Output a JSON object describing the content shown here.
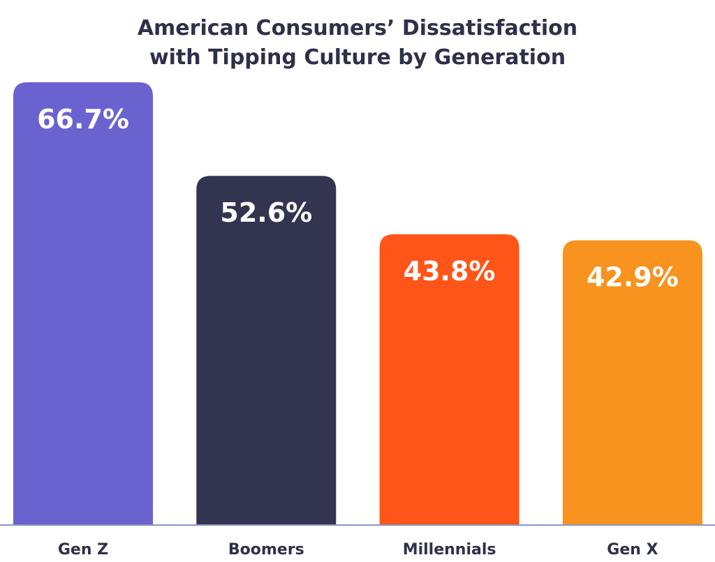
{
  "chart_data": {
    "type": "bar",
    "title_lines": [
      "American Consumers’ Dissatisfaction",
      "with Tipping Culture by Generation"
    ],
    "categories": [
      "Gen Z",
      "Boomers",
      "Millennials",
      "Gen X"
    ],
    "values": [
      66.7,
      52.6,
      43.8,
      42.9
    ],
    "value_labels": [
      "66.7%",
      "52.6%",
      "43.8%",
      "42.9%"
    ],
    "unit": "%",
    "colors": [
      "#6a63cf",
      "#323450",
      "#ff5518",
      "#f7931e"
    ],
    "axis_color": "#8a95c9",
    "xlabel": "",
    "ylabel": "",
    "ylim": [
      0,
      66.7
    ],
    "grid": false,
    "legend": "none"
  }
}
